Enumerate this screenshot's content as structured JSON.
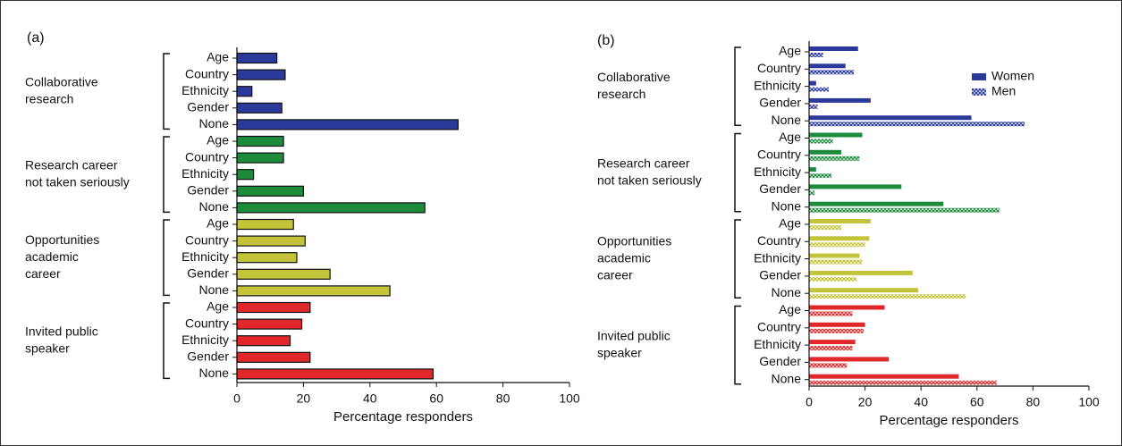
{
  "chart_data": [
    {
      "type": "hbar-grouped",
      "panel": "(a)",
      "x_label": "Percentage responders",
      "xlim": [
        0,
        100
      ],
      "xticks": [
        0,
        20,
        40,
        60,
        80,
        100
      ],
      "groups": [
        {
          "name": [
            "Collaborative",
            "research"
          ],
          "color": "#2b3a9a",
          "categories": [
            "Age",
            "Country",
            "Ethnicity",
            "Gender",
            "None"
          ],
          "values": [
            12,
            14.5,
            4.5,
            13.5,
            66.5
          ]
        },
        {
          "name": [
            "Research career",
            "not taken seriously"
          ],
          "color": "#1e8a3c",
          "categories": [
            "Age",
            "Country",
            "Ethnicity",
            "Gender",
            "None"
          ],
          "values": [
            14,
            14,
            5,
            20,
            56.5
          ]
        },
        {
          "name": [
            "Opportunities",
            "academic",
            "career"
          ],
          "color": "#c4c43a",
          "categories": [
            "Age",
            "Country",
            "Ethnicity",
            "Gender",
            "None"
          ],
          "values": [
            17,
            20.5,
            18,
            28,
            46
          ]
        },
        {
          "name": [
            "Invited public",
            "speaker"
          ],
          "color": "#e0282a",
          "categories": [
            "Age",
            "Country",
            "Ethnicity",
            "Gender",
            "None"
          ],
          "values": [
            22,
            19.5,
            16,
            22,
            59
          ]
        }
      ]
    },
    {
      "type": "hbar-grouped-paired",
      "panel": "(b)",
      "x_label": "Percentage responders",
      "xlim": [
        0,
        100
      ],
      "xticks": [
        0,
        20,
        40,
        60,
        80,
        100
      ],
      "series": [
        {
          "name": "Women",
          "fill": "solid"
        },
        {
          "name": "Men",
          "fill": "checked"
        }
      ],
      "legend": "upper right",
      "groups": [
        {
          "name": [
            "Collaborative",
            "research"
          ],
          "color": "#2b3a9a",
          "categories": [
            "Age",
            "Country",
            "Ethnicity",
            "Gender",
            "None"
          ],
          "values": [
            [
              17.5,
              13,
              2.5,
              22,
              58
            ],
            [
              5,
              16,
              7,
              3,
              77
            ]
          ]
        },
        {
          "name": [
            "Research career",
            "not taken seriously"
          ],
          "color": "#1e8a3c",
          "categories": [
            "Age",
            "Country",
            "Ethnicity",
            "Gender",
            "None"
          ],
          "values": [
            [
              19,
              11.5,
              2.5,
              33,
              48
            ],
            [
              8.5,
              18,
              8,
              2,
              68
            ]
          ]
        },
        {
          "name": [
            "Opportunities",
            "academic",
            "career"
          ],
          "color": "#c4c43a",
          "categories": [
            "Age",
            "Country",
            "Ethnicity",
            "Gender",
            "None"
          ],
          "values": [
            [
              22,
              21.5,
              18,
              37,
              39
            ],
            [
              11.5,
              20,
              19,
              17,
              56
            ]
          ]
        },
        {
          "name": [
            "Invited public",
            "speaker"
          ],
          "color": "#e0282a",
          "categories": [
            "Age",
            "Country",
            "Ethnicity",
            "Gender",
            "None"
          ],
          "values": [
            [
              27,
              20,
              16.5,
              28.5,
              53.5
            ],
            [
              15.5,
              19.5,
              15.5,
              13.5,
              67
            ]
          ]
        }
      ]
    }
  ]
}
